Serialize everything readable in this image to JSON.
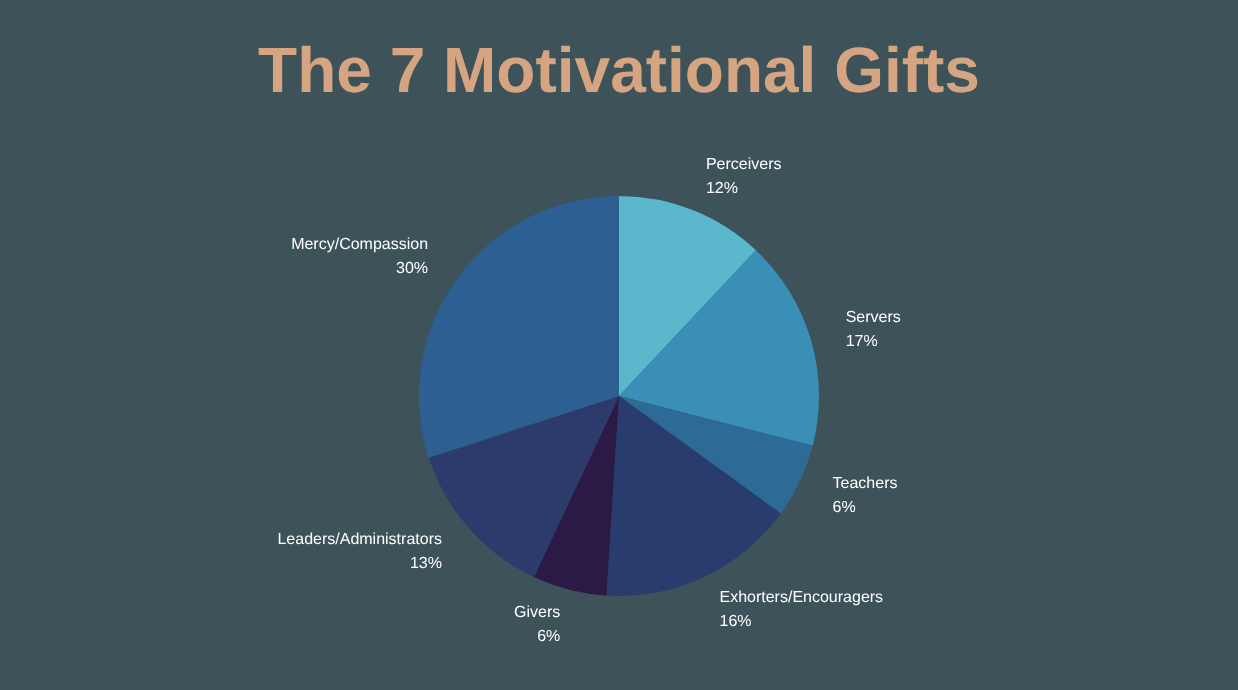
{
  "chart_data": {
    "type": "pie",
    "title": "The 7 Motivational Gifts",
    "categories": [
      "Perceivers",
      "Servers",
      "Teachers",
      "Exhorters/Encouragers",
      "Givers",
      "Leaders/Administrators",
      "Mercy/Compassion"
    ],
    "values": [
      12,
      17,
      6,
      16,
      6,
      13,
      30
    ],
    "colors": [
      "#5bb8cc",
      "#3a8fb7",
      "#2e6a96",
      "#283d6e",
      "#2a1a45",
      "#2c3b6b",
      "#2e5f93"
    ],
    "value_labels": [
      "12%",
      "17%",
      "6%",
      "16%",
      "6%",
      "13%",
      "30%"
    ],
    "legend": false
  }
}
